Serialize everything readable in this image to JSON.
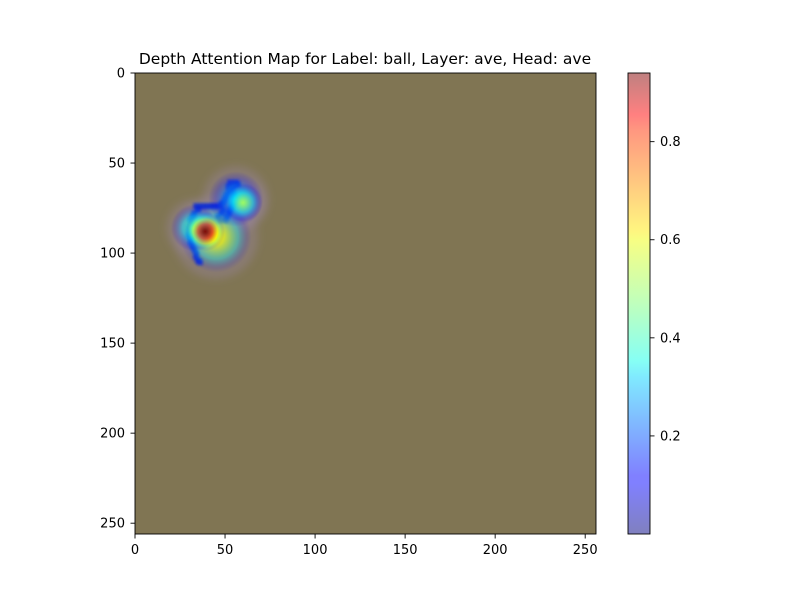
{
  "chart_data": {
    "type": "heatmap",
    "title": "Depth Attention Map for Label: ball, Layer: ave, Head: ave",
    "xlabel": "",
    "ylabel": "",
    "xlim": [
      0,
      256
    ],
    "ylim": [
      256,
      0
    ],
    "x_ticks": [
      0,
      50,
      100,
      150,
      200,
      250
    ],
    "y_ticks": [
      0,
      50,
      100,
      150,
      200,
      250
    ],
    "grid": false,
    "background_color": "#807553",
    "colorbar": {
      "colormap": "jet",
      "alpha": 0.5,
      "range": [
        0.0,
        0.94
      ],
      "ticks": [
        0.2,
        0.4,
        0.6,
        0.8
      ]
    },
    "hotspots": [
      {
        "x": 39,
        "y": 88,
        "value": 0.94,
        "spread": 5
      },
      {
        "x": 45,
        "y": 91,
        "value": 0.6,
        "spread": 9
      },
      {
        "x": 33,
        "y": 86,
        "value": 0.45,
        "spread": 6
      },
      {
        "x": 60,
        "y": 72,
        "value": 0.5,
        "spread": 5
      },
      {
        "x": 56,
        "y": 70,
        "value": 0.3,
        "spread": 7
      }
    ],
    "outline_points": [
      [
        56,
        61
      ],
      [
        55,
        63
      ],
      [
        54,
        65
      ],
      [
        52,
        66
      ],
      [
        51,
        68
      ],
      [
        50,
        70
      ],
      [
        49,
        72
      ],
      [
        48,
        73
      ],
      [
        46,
        74
      ],
      [
        44,
        74
      ],
      [
        42,
        74
      ],
      [
        40,
        74
      ],
      [
        38,
        74
      ],
      [
        36,
        74
      ],
      [
        34,
        74
      ],
      [
        35,
        76
      ],
      [
        33,
        78
      ],
      [
        32,
        80
      ],
      [
        31,
        82
      ],
      [
        31,
        84
      ],
      [
        30,
        86
      ],
      [
        30,
        88
      ],
      [
        30,
        90
      ],
      [
        31,
        92
      ],
      [
        31,
        94
      ],
      [
        32,
        96
      ],
      [
        33,
        98
      ],
      [
        34,
        100
      ],
      [
        34,
        102
      ],
      [
        35,
        104
      ],
      [
        36,
        105
      ],
      [
        55,
        68
      ],
      [
        56,
        70
      ],
      [
        55,
        72
      ],
      [
        54,
        74
      ],
      [
        53,
        76
      ],
      [
        52,
        78
      ],
      [
        51,
        80
      ],
      [
        50,
        82
      ],
      [
        47,
        82
      ],
      [
        46,
        80
      ],
      [
        48,
        78
      ],
      [
        49,
        76
      ],
      [
        52,
        63
      ],
      [
        53,
        61
      ],
      [
        57,
        62
      ]
    ]
  }
}
